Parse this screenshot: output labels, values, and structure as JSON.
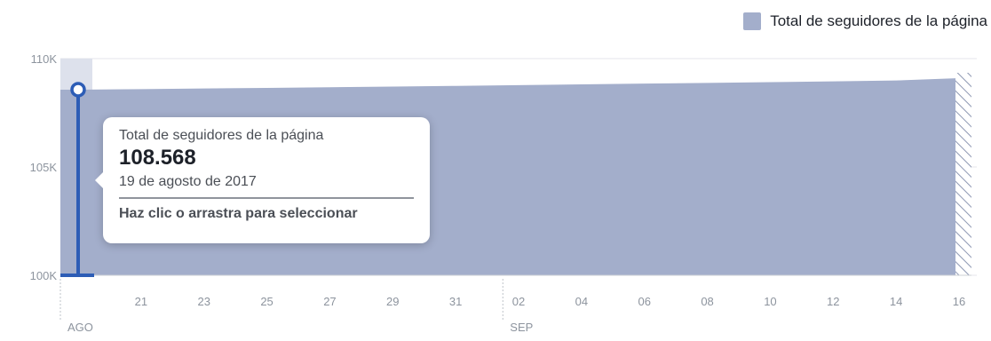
{
  "chart_data": {
    "type": "area",
    "series": [
      {
        "name": "Total de seguidores de la página",
        "x": [
          "2017-08-19",
          "2017-08-21",
          "2017-08-23",
          "2017-08-25",
          "2017-08-27",
          "2017-08-29",
          "2017-08-31",
          "2017-09-02",
          "2017-09-04",
          "2017-09-06",
          "2017-09-08",
          "2017-09-10",
          "2017-09-12",
          "2017-09-14",
          "2017-09-16"
        ],
        "values": [
          108568,
          108590,
          108620,
          108650,
          108680,
          108710,
          108740,
          108775,
          108810,
          108845,
          108880,
          108915,
          108950,
          108990,
          109100
        ]
      }
    ],
    "x_tick_labels": [
      "21",
      "23",
      "25",
      "27",
      "29",
      "31",
      "02",
      "04",
      "06",
      "08",
      "10",
      "12",
      "14",
      "16"
    ],
    "x_group_labels": [
      "AGO",
      "SEP"
    ],
    "y_tick_labels": [
      "100K",
      "105K",
      "110K"
    ],
    "ylim": [
      100000,
      110000
    ],
    "grid": true,
    "legend": "top-right",
    "colors": {
      "area": "#a3aecb",
      "selection_band": "#dde1ec",
      "marker": "#2d5db6",
      "hatch": "#8e98b3"
    }
  },
  "tooltip": {
    "series_label": "Total de seguidores de la página",
    "value": "108.568",
    "date": "19 de agosto de 2017",
    "hint": "Haz clic o arrastra para seleccionar"
  }
}
